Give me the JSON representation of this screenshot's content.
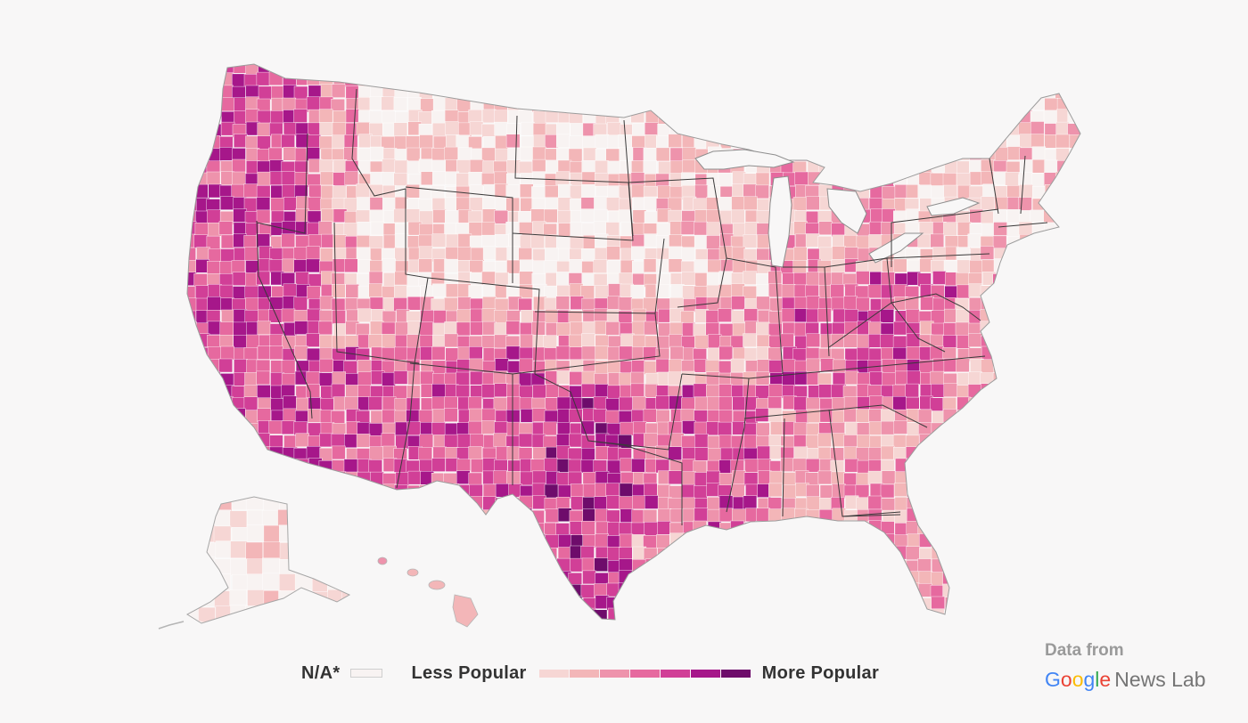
{
  "map": {
    "type": "choropleth",
    "region": "United States counties",
    "colors": {
      "na": "#f8f3f2",
      "ramp": [
        "#f6d6d4",
        "#f3b6b8",
        "#ee93ac",
        "#e6699f",
        "#d13f97",
        "#a6178a",
        "#6e0c6b"
      ],
      "border": "#3a3a3a",
      "water": "#f8f7f7"
    }
  },
  "legend": {
    "na_label": "N/A*",
    "less_label": "Less Popular",
    "more_label": "More Popular",
    "bins": 7
  },
  "credit": {
    "data_from": "Data from",
    "google_letters": [
      {
        "ch": "G",
        "color": "#4285F4"
      },
      {
        "ch": "o",
        "color": "#EA4335"
      },
      {
        "ch": "o",
        "color": "#FBBC05"
      },
      {
        "ch": "g",
        "color": "#4285F4"
      },
      {
        "ch": "l",
        "color": "#34A853"
      },
      {
        "ch": "e",
        "color": "#EA4335"
      }
    ],
    "product": "News Lab"
  }
}
